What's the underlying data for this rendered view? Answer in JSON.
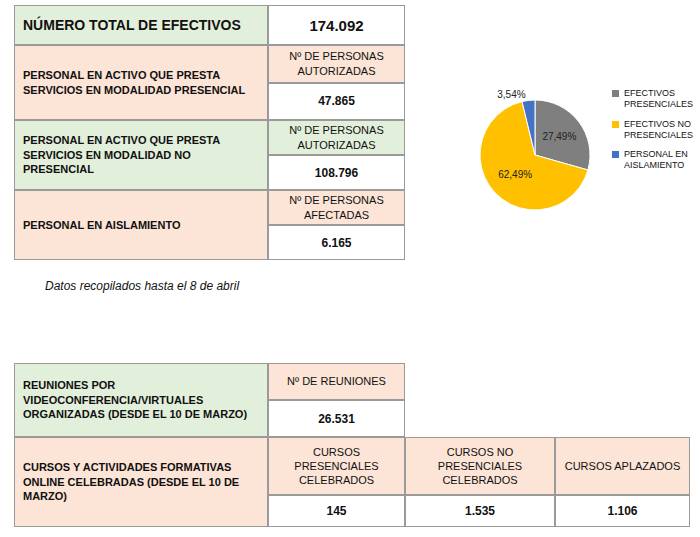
{
  "table_1": {
    "total": {
      "label": "NÚMERO TOTAL DE EFECTIVOS",
      "value": "174.092"
    },
    "rows": [
      {
        "label": "PERSONAL EN ACTIVO QUE PRESTA SERVICIOS EN MODALIDAD PRESENCIAL",
        "header": "Nº DE PERSONAS AUTORIZADAS",
        "value": "47.865"
      },
      {
        "label": "PERSONAL EN ACTIVO QUE PRESTA SERVICIOS EN MODALIDAD NO PRESENCIAL",
        "header": "Nº DE PERSONAS AUTORIZADAS",
        "value": "108.796"
      },
      {
        "label": "PERSONAL EN AISLAMIENTO",
        "header": "Nº DE PERSONAS AFECTADAS",
        "value": "6.165"
      }
    ]
  },
  "note": "Datos recopilados hasta el 8 de abril",
  "chart_data": {
    "type": "pie",
    "categories": [
      "EFECTIVOS PRESENCIALES",
      "EFECTIVOS NO PRESENCIALES",
      "PERSONAL EN AISLAMIENTO"
    ],
    "values": [
      27.49,
      62.49,
      3.54
    ],
    "value_labels": [
      "27,49%",
      "62,49%",
      "3,54%"
    ],
    "colors": [
      "#7f7f7f",
      "#ffc000",
      "#4472c4"
    ],
    "data_labels": true,
    "legend": "right"
  },
  "table_2": {
    "rows": [
      {
        "label": "REUNIONES POR VIDEOCONFERENCIA/VIRTUALES ORGANIZADAS (DESDE EL 10 DE MARZO)",
        "headers": [
          "Nº DE REUNIONES"
        ],
        "values": [
          "26.531"
        ]
      },
      {
        "label": "CURSOS Y ACTIVIDADES FORMATIVAS ONLINE CELEBRADAS (DESDE EL 10 DE MARZO)",
        "headers": [
          "CURSOS PRESENCIALES CELEBRADOS",
          "CURSOS NO PRESENCIALES CELEBRADOS",
          "CURSOS APLAZADOS"
        ],
        "values": [
          "145",
          "1.535",
          "1.106"
        ]
      }
    ]
  }
}
